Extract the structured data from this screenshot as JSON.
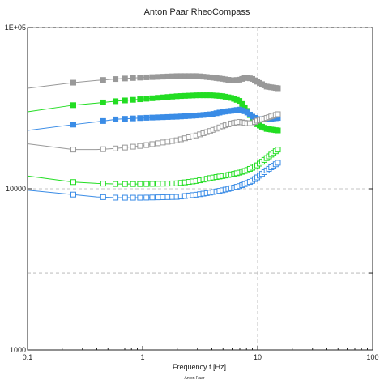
{
  "chart_data": {
    "type": "scatter",
    "title": "Anton Paar RheoCompass",
    "xlabel": "Frequency f [Hz]",
    "ylabel": "",
    "footer": "Anton Paar",
    "x_scale": "log",
    "y_scale": "log",
    "xlim": [
      0.1,
      100
    ],
    "ylim": [
      1000,
      100000
    ],
    "x_ticks": [
      {
        "value": 0.1,
        "label": "0.1"
      },
      {
        "value": 1,
        "label": "1"
      },
      {
        "value": 10,
        "label": "10"
      },
      {
        "value": 100,
        "label": "100"
      }
    ],
    "y_ticks": [
      {
        "value": 1000,
        "label": "1000"
      },
      {
        "value": 10000,
        "label": "10000"
      },
      {
        "value": 100000,
        "label": "1E+05"
      }
    ],
    "gridlines": {
      "x": [
        10
      ],
      "y": [
        3000,
        10000,
        100000
      ]
    },
    "colors": {
      "gray": "#999999",
      "green": "#22dd22",
      "blue": "#3a8ce6",
      "grid": "#b0b0b0"
    },
    "series": [
      {
        "color": "gray",
        "filled": true,
        "x": [
          0.1,
          0.25,
          0.4,
          0.6,
          1,
          2,
          3,
          4,
          5,
          6,
          7,
          8,
          9,
          10,
          12,
          15
        ],
        "y": [
          42000,
          45500,
          47000,
          48000,
          49000,
          50000,
          50000,
          49000,
          48000,
          47000,
          47500,
          49000,
          48000,
          46000,
          43000,
          42000
        ]
      },
      {
        "color": "green",
        "filled": true,
        "x": [
          0.1,
          0.25,
          0.4,
          0.6,
          1,
          2,
          3,
          4,
          5,
          6,
          7,
          8,
          9,
          10,
          12,
          15
        ],
        "y": [
          30000,
          33000,
          34000,
          35000,
          36000,
          37500,
          38000,
          38000,
          37500,
          36500,
          35000,
          31000,
          27000,
          25000,
          23500,
          23000
        ]
      },
      {
        "color": "blue",
        "filled": true,
        "x": [
          0.1,
          0.25,
          0.4,
          0.6,
          1,
          2,
          3,
          4,
          5,
          6,
          7,
          8,
          9,
          10,
          12,
          15
        ],
        "y": [
          23000,
          25000,
          26000,
          27000,
          27500,
          28000,
          28500,
          29000,
          30000,
          30500,
          31000,
          30000,
          28000,
          27000,
          27000,
          27500
        ]
      },
      {
        "color": "gray",
        "filled": false,
        "x": [
          0.1,
          0.25,
          0.4,
          0.6,
          1,
          2,
          3,
          4,
          5,
          6,
          7,
          8,
          9,
          10,
          12,
          15
        ],
        "y": [
          19000,
          17500,
          17500,
          17800,
          18500,
          20000,
          21500,
          23000,
          24500,
          25500,
          26000,
          25500,
          25500,
          26500,
          27500,
          29000
        ]
      },
      {
        "color": "green",
        "filled": false,
        "x": [
          0.1,
          0.25,
          0.4,
          0.6,
          1,
          2,
          3,
          4,
          5,
          6,
          7,
          8,
          9,
          10,
          12,
          15
        ],
        "y": [
          12000,
          11000,
          10800,
          10700,
          10700,
          10800,
          11200,
          11700,
          12000,
          12300,
          12600,
          13000,
          13500,
          14000,
          15500,
          17500
        ]
      },
      {
        "color": "blue",
        "filled": false,
        "x": [
          0.1,
          0.25,
          0.4,
          0.6,
          1,
          2,
          3,
          4,
          5,
          6,
          7,
          8,
          9,
          10,
          12,
          15
        ],
        "y": [
          9800,
          9200,
          8900,
          8800,
          8800,
          8900,
          9200,
          9500,
          9800,
          10100,
          10400,
          10800,
          11200,
          11800,
          13000,
          14500
        ]
      }
    ]
  }
}
